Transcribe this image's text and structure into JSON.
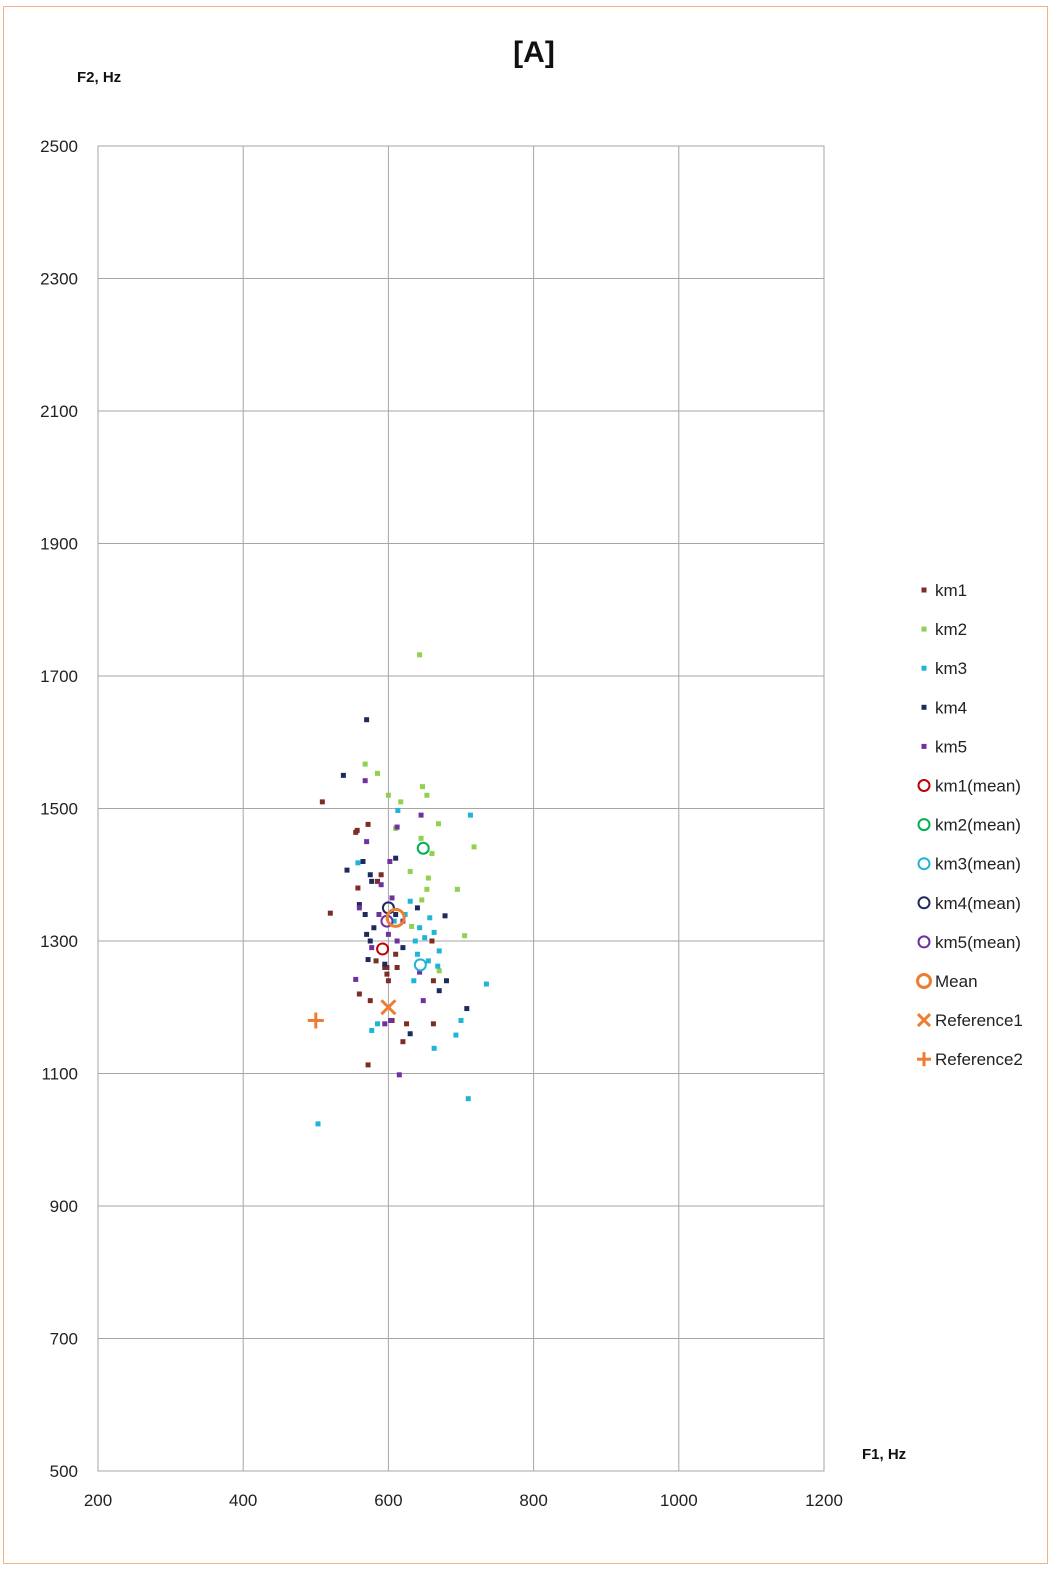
{
  "chart_data": {
    "type": "scatter",
    "title": "[A]",
    "xlabel": "F1, Hz",
    "ylabel": "F2, Hz",
    "xlim": [
      200,
      1200
    ],
    "ylim": [
      500,
      2500
    ],
    "xticks": [
      200,
      400,
      600,
      800,
      1000,
      1200
    ],
    "yticks": [
      500,
      700,
      900,
      1100,
      1300,
      1500,
      1700,
      1900,
      2100,
      2300,
      2500
    ],
    "grid": true,
    "legend_position": "right",
    "series": [
      {
        "name": "km1",
        "marker": "square",
        "color": "#7b2d26",
        "points": [
          [
            509,
            1510
          ],
          [
            520,
            1342
          ],
          [
            557,
            1467
          ],
          [
            558,
            1380
          ],
          [
            572,
            1476
          ],
          [
            585,
            1390
          ],
          [
            583,
            1270
          ],
          [
            595,
            1260
          ],
          [
            598,
            1250
          ],
          [
            600,
            1240
          ],
          [
            610,
            1280
          ],
          [
            590,
            1400
          ],
          [
            560,
            1220
          ],
          [
            575,
            1210
          ],
          [
            605,
            1180
          ],
          [
            625,
            1175
          ],
          [
            620,
            1148
          ],
          [
            572,
            1113
          ],
          [
            660,
            1300
          ],
          [
            662,
            1175
          ],
          [
            662,
            1240
          ],
          [
            598,
            1260
          ],
          [
            612,
            1260
          ],
          [
            555,
            1464
          ]
        ]
      },
      {
        "name": "km2",
        "marker": "square",
        "color": "#92d050",
        "points": [
          [
            643,
            1732
          ],
          [
            568,
            1567
          ],
          [
            585,
            1553
          ],
          [
            600,
            1520
          ],
          [
            617,
            1510
          ],
          [
            647,
            1533
          ],
          [
            653,
            1520
          ],
          [
            669,
            1477
          ],
          [
            718,
            1442
          ],
          [
            645,
            1455
          ],
          [
            630,
            1405
          ],
          [
            655,
            1395
          ],
          [
            653,
            1378
          ],
          [
            695,
            1378
          ],
          [
            646,
            1362
          ],
          [
            705,
            1308
          ],
          [
            670,
            1255
          ],
          [
            610,
            1470
          ],
          [
            632,
            1322
          ],
          [
            660,
            1432
          ]
        ]
      },
      {
        "name": "km3",
        "marker": "square",
        "color": "#1fb4d8",
        "points": [
          [
            713,
            1490
          ],
          [
            613,
            1497
          ],
          [
            630,
            1360
          ],
          [
            643,
            1320
          ],
          [
            657,
            1335
          ],
          [
            663,
            1313
          ],
          [
            637,
            1300
          ],
          [
            670,
            1285
          ],
          [
            655,
            1270
          ],
          [
            668,
            1262
          ],
          [
            635,
            1240
          ],
          [
            735,
            1235
          ],
          [
            700,
            1180
          ],
          [
            693,
            1158
          ],
          [
            663,
            1138
          ],
          [
            577,
            1165
          ],
          [
            585,
            1175
          ],
          [
            710,
            1062
          ],
          [
            503,
            1024
          ],
          [
            558,
            1418
          ],
          [
            623,
            1340
          ],
          [
            650,
            1305
          ],
          [
            640,
            1280
          ],
          [
            608,
            1330
          ]
        ]
      },
      {
        "name": "km4",
        "marker": "square",
        "color": "#1f2a5c",
        "points": [
          [
            570,
            1634
          ],
          [
            538,
            1550
          ],
          [
            565,
            1420
          ],
          [
            575,
            1400
          ],
          [
            577,
            1390
          ],
          [
            580,
            1320
          ],
          [
            568,
            1340
          ],
          [
            560,
            1355
          ],
          [
            543,
            1407
          ],
          [
            610,
            1425
          ],
          [
            640,
            1350
          ],
          [
            678,
            1338
          ],
          [
            570,
            1310
          ],
          [
            575,
            1300
          ],
          [
            620,
            1290
          ],
          [
            670,
            1225
          ],
          [
            680,
            1240
          ],
          [
            708,
            1198
          ],
          [
            630,
            1160
          ],
          [
            572,
            1272
          ],
          [
            610,
            1340
          ],
          [
            595,
            1265
          ]
        ]
      },
      {
        "name": "km5",
        "marker": "square",
        "color": "#7030a0",
        "points": [
          [
            568,
            1542
          ],
          [
            612,
            1472
          ],
          [
            645,
            1490
          ],
          [
            570,
            1450
          ],
          [
            602,
            1420
          ],
          [
            590,
            1385
          ],
          [
            555,
            1242
          ],
          [
            577,
            1290
          ],
          [
            605,
            1365
          ],
          [
            600,
            1310
          ],
          [
            612,
            1300
          ],
          [
            643,
            1253
          ],
          [
            648,
            1210
          ],
          [
            595,
            1175
          ],
          [
            603,
            1180
          ],
          [
            615,
            1098
          ],
          [
            560,
            1350
          ],
          [
            587,
            1340
          ],
          [
            620,
            1330
          ]
        ]
      },
      {
        "name": "km1(mean)",
        "marker": "circle",
        "color": "#c00000",
        "points": [
          [
            592,
            1288
          ]
        ]
      },
      {
        "name": "km2(mean)",
        "marker": "circle",
        "color": "#00b050",
        "points": [
          [
            648,
            1440
          ]
        ]
      },
      {
        "name": "km3(mean)",
        "marker": "circle",
        "color": "#1fb4d8",
        "points": [
          [
            644,
            1264
          ]
        ]
      },
      {
        "name": "km4(mean)",
        "marker": "circle",
        "color": "#1f2a5c",
        "points": [
          [
            600,
            1350
          ]
        ]
      },
      {
        "name": "km5(mean)",
        "marker": "circle",
        "color": "#7030a0",
        "points": [
          [
            598,
            1330
          ]
        ]
      },
      {
        "name": "Mean",
        "marker": "circle-large",
        "color": "#ed7d31",
        "points": [
          [
            610,
            1335
          ]
        ]
      },
      {
        "name": "Reference1",
        "marker": "x",
        "color": "#ed7d31",
        "points": [
          [
            600,
            1200
          ]
        ]
      },
      {
        "name": "Reference2",
        "marker": "plus",
        "color": "#ed7d31",
        "points": [
          [
            500,
            1180
          ]
        ]
      }
    ]
  }
}
